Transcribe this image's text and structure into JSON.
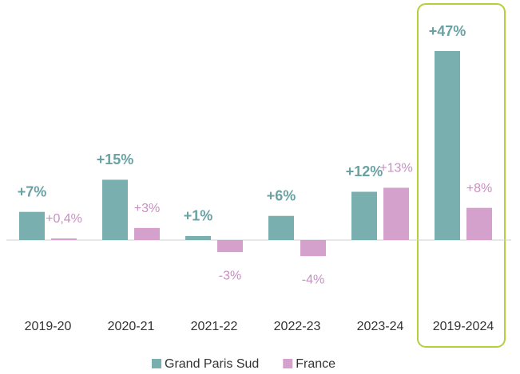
{
  "chart_data": {
    "type": "bar",
    "categories": [
      "2019-20",
      "2020-21",
      "2021-22",
      "2022-23",
      "2023-24",
      "2019-2024"
    ],
    "series": [
      {
        "name": "Grand Paris Sud",
        "color": "#7aafb0",
        "values": [
          7,
          15,
          1,
          6,
          12,
          47
        ],
        "value_labels": [
          "+7%",
          "+15%",
          "+1%",
          "+6%",
          "+12%",
          "+47%"
        ]
      },
      {
        "name": "France",
        "color": "#d4a0cc",
        "values": [
          0.4,
          3,
          -3,
          -4,
          13,
          8
        ],
        "value_labels": [
          "+0,4%",
          "+3%",
          "-3%",
          "-4%",
          "+13%",
          "+8%"
        ]
      }
    ],
    "grid": false,
    "legend": "bottom"
  }
}
